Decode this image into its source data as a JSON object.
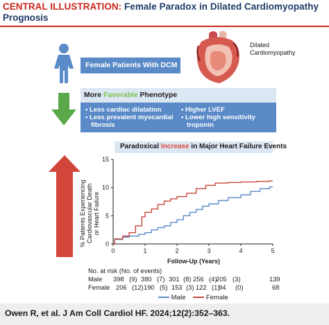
{
  "title": {
    "lead": "CENTRAL ILLUSTRATION:",
    "line1_rest": " Female Paradox in Dilated Cardiomyopathy",
    "line2": "Prognosis"
  },
  "heart_label": [
    "Dilated",
    "Cardiomyopathy"
  ],
  "female_box": "Female Patients With DCM",
  "phenotype": {
    "title_pre": "More ",
    "title_highlight": "Favorable",
    "title_post": " Phenotype",
    "highlight_color": "#7cc04a",
    "bullets_left": [
      "• Less cardiac dilatation",
      "• Less prevalent myocardial",
      "   fibrosis"
    ],
    "bullets_right": [
      "• Higher LVEF",
      "• Lower high sensitivity",
      "   troponin"
    ]
  },
  "events": {
    "title_pre": "Paradoxical ",
    "title_highlight": "Increase",
    "title_post": " in Major Heart Failure Events",
    "highlight_color": "#e04a3c"
  },
  "chart_data": {
    "type": "line",
    "ylabel": [
      "% Patients Experiencing",
      "Cardiovascular Death",
      "or Heart Failure"
    ],
    "xlabel": "Follow-Up (Years)",
    "xlim": [
      0,
      5
    ],
    "ylim": [
      0,
      15
    ],
    "xticks": [
      "0",
      "1",
      "2",
      "3",
      "4",
      "5"
    ],
    "yticks": [
      "0",
      "5",
      "10",
      "15"
    ],
    "series": [
      {
        "name": "Male",
        "color": "#5b8ac8",
        "x": [
          0,
          0.05,
          0.3,
          0.5,
          0.8,
          1.0,
          1.2,
          1.4,
          1.6,
          1.8,
          2.0,
          2.2,
          2.4,
          2.6,
          2.8,
          3.0,
          3.3,
          3.6,
          4.0,
          4.3,
          4.6,
          4.9
        ],
        "y": [
          0,
          0.8,
          1.2,
          1.4,
          1.7,
          2.0,
          2.5,
          2.9,
          3.2,
          3.8,
          4.3,
          5.0,
          5.6,
          6.1,
          6.7,
          7.1,
          7.7,
          8.2,
          8.7,
          9.3,
          9.8,
          10.1
        ]
      },
      {
        "name": "Female",
        "color": "#c7463a",
        "x": [
          0,
          0.05,
          0.3,
          0.5,
          0.7,
          0.9,
          1.0,
          1.2,
          1.4,
          1.6,
          1.8,
          2.0,
          2.3,
          2.6,
          2.9,
          3.2,
          3.6,
          4.0,
          4.5,
          4.9
        ],
        "y": [
          0,
          0.9,
          1.4,
          2.0,
          3.2,
          4.8,
          5.6,
          6.2,
          7.0,
          7.6,
          8.0,
          8.4,
          9.0,
          9.8,
          10.4,
          10.8,
          10.9,
          11.0,
          11.1,
          11.2
        ]
      }
    ]
  },
  "risk_table": {
    "title": "No. at risk (No. of events)",
    "rows": [
      {
        "label": "Male",
        "cells": [
          "398",
          "(9)",
          "380",
          "(7)",
          "301",
          "(8)",
          "256",
          "(4)",
          "205",
          "(3)",
          "139"
        ]
      },
      {
        "label": "Female",
        "cells": [
          "206",
          "(12)",
          "190",
          "(5)",
          "153",
          "(3)",
          "122",
          "(1)",
          "94",
          "(0)",
          "68"
        ]
      }
    ]
  },
  "citation": "Owen R, et al. J Am Coll Cardiol HF. 2024;12(2):352–363."
}
